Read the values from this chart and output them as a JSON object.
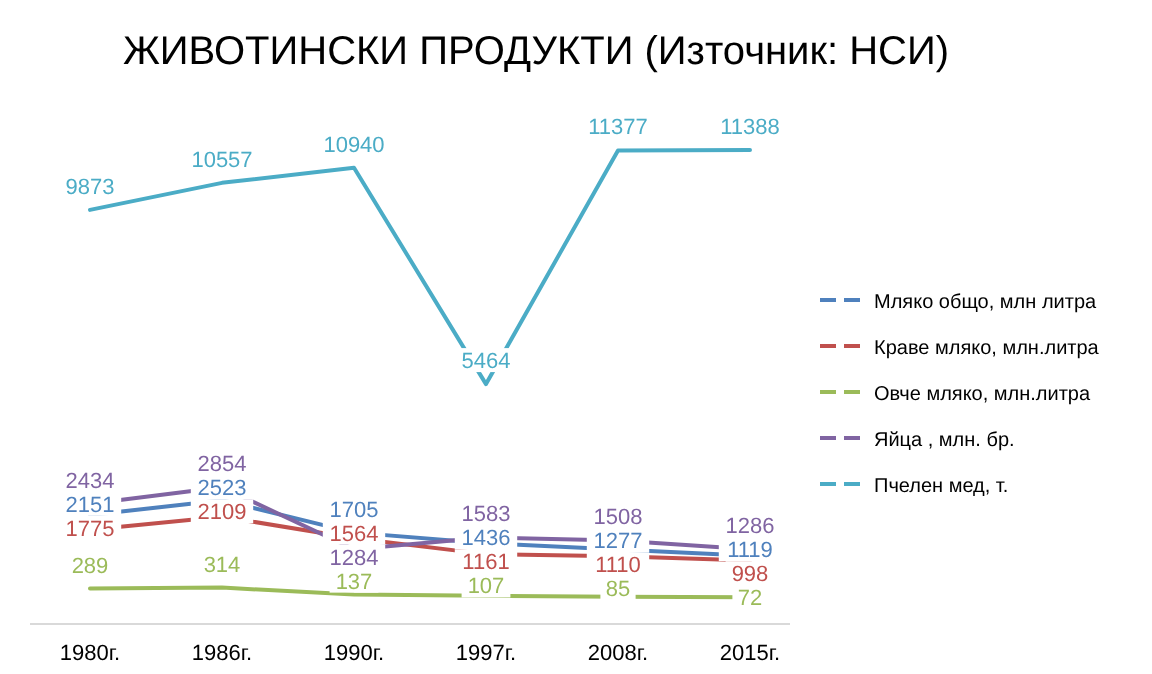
{
  "chart_data": {
    "type": "line",
    "title": "ЖИВОТИНСКИ ПРОДУКТИ (Източник: НСИ)",
    "categories": [
      "1980г.",
      "1986г.",
      "1990г.",
      "1997г.",
      "2008г.",
      "2015г."
    ],
    "series": [
      {
        "name": "Мляко общо, млн литра",
        "color": "#4f81bd",
        "values": [
          2151,
          2523,
          1705,
          1436,
          1277,
          1119
        ]
      },
      {
        "name": "Краве мляко, млн.литра",
        "color": "#c0504d",
        "values": [
          1775,
          2109,
          1564,
          1161,
          1110,
          998
        ]
      },
      {
        "name": "Овче мляко, млн.литра",
        "color": "#9bbb59",
        "values": [
          289,
          314,
          137,
          107,
          85,
          72
        ]
      },
      {
        "name": "Яйца , млн. бр.",
        "color": "#8064a2",
        "values": [
          2434,
          2854,
          1284,
          1583,
          1508,
          1286
        ]
      },
      {
        "name": "Пчелен мед, т.",
        "color": "#4bacc6",
        "values": [
          9873,
          10557,
          10940,
          5464,
          11377,
          11388
        ]
      }
    ],
    "data_labels": true,
    "legend": "right",
    "marker": "none"
  }
}
